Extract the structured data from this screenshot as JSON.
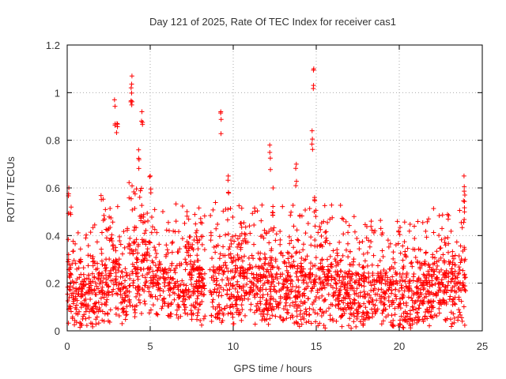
{
  "chart_data": {
    "type": "scatter",
    "title": "Day 121 of 2025, Rate Of TEC Index for receiver cas1",
    "xlabel": "GPS time / hours",
    "ylabel": "ROTI / TECUs",
    "xlim": [
      0,
      25
    ],
    "ylim": [
      0,
      1.2
    ],
    "xticks": [
      "0",
      "5",
      "10",
      "15",
      "20",
      "25"
    ],
    "yticks": [
      "0",
      "0.2",
      "0.4",
      "0.6",
      "0.8",
      "1",
      "1.2"
    ],
    "grid": true,
    "marker": "+",
    "marker_color": "#ff0000",
    "notable_points": [
      {
        "x": 3.9,
        "y": 1.07
      },
      {
        "x": 3.85,
        "y": 1.02
      },
      {
        "x": 2.85,
        "y": 0.97
      },
      {
        "x": 14.85,
        "y": 1.1
      },
      {
        "x": 9.25,
        "y": 0.92
      },
      {
        "x": 4.5,
        "y": 0.92
      },
      {
        "x": 14.75,
        "y": 0.84
      },
      {
        "x": 12.2,
        "y": 0.78
      },
      {
        "x": 3.0,
        "y": 0.87
      },
      {
        "x": 4.3,
        "y": 0.76
      },
      {
        "x": 13.8,
        "y": 0.7
      },
      {
        "x": 23.9,
        "y": 0.65
      },
      {
        "x": 0.1,
        "y": 0.6
      },
      {
        "x": 5.0,
        "y": 0.65
      },
      {
        "x": 9.7,
        "y": 0.65
      },
      {
        "x": 14.9,
        "y": 0.56
      },
      {
        "x": 12.4,
        "y": 0.6
      },
      {
        "x": 23.95,
        "y": 0.57
      }
    ],
    "segments": [
      {
        "start": 0.0,
        "end": 0.3,
        "base": 0.12,
        "spread": 0.22
      },
      {
        "start": 0.3,
        "end": 2.0,
        "base": 0.1,
        "spread": 0.18
      },
      {
        "start": 2.0,
        "end": 3.2,
        "base": 0.16,
        "spread": 0.24
      },
      {
        "start": 3.2,
        "end": 3.6,
        "base": 0.1,
        "spread": 0.14
      },
      {
        "start": 3.6,
        "end": 5.0,
        "base": 0.2,
        "spread": 0.26
      },
      {
        "start": 5.0,
        "end": 8.3,
        "base": 0.14,
        "spread": 0.22
      },
      {
        "start": 8.6,
        "end": 10.5,
        "base": 0.14,
        "spread": 0.22
      },
      {
        "start": 10.5,
        "end": 13.0,
        "base": 0.14,
        "spread": 0.22
      },
      {
        "start": 13.0,
        "end": 16.5,
        "base": 0.13,
        "spread": 0.22
      },
      {
        "start": 16.5,
        "end": 19.0,
        "base": 0.11,
        "spread": 0.2
      },
      {
        "start": 19.0,
        "end": 22.0,
        "base": 0.1,
        "spread": 0.2
      },
      {
        "start": 22.0,
        "end": 24.0,
        "base": 0.13,
        "spread": 0.22
      }
    ]
  }
}
